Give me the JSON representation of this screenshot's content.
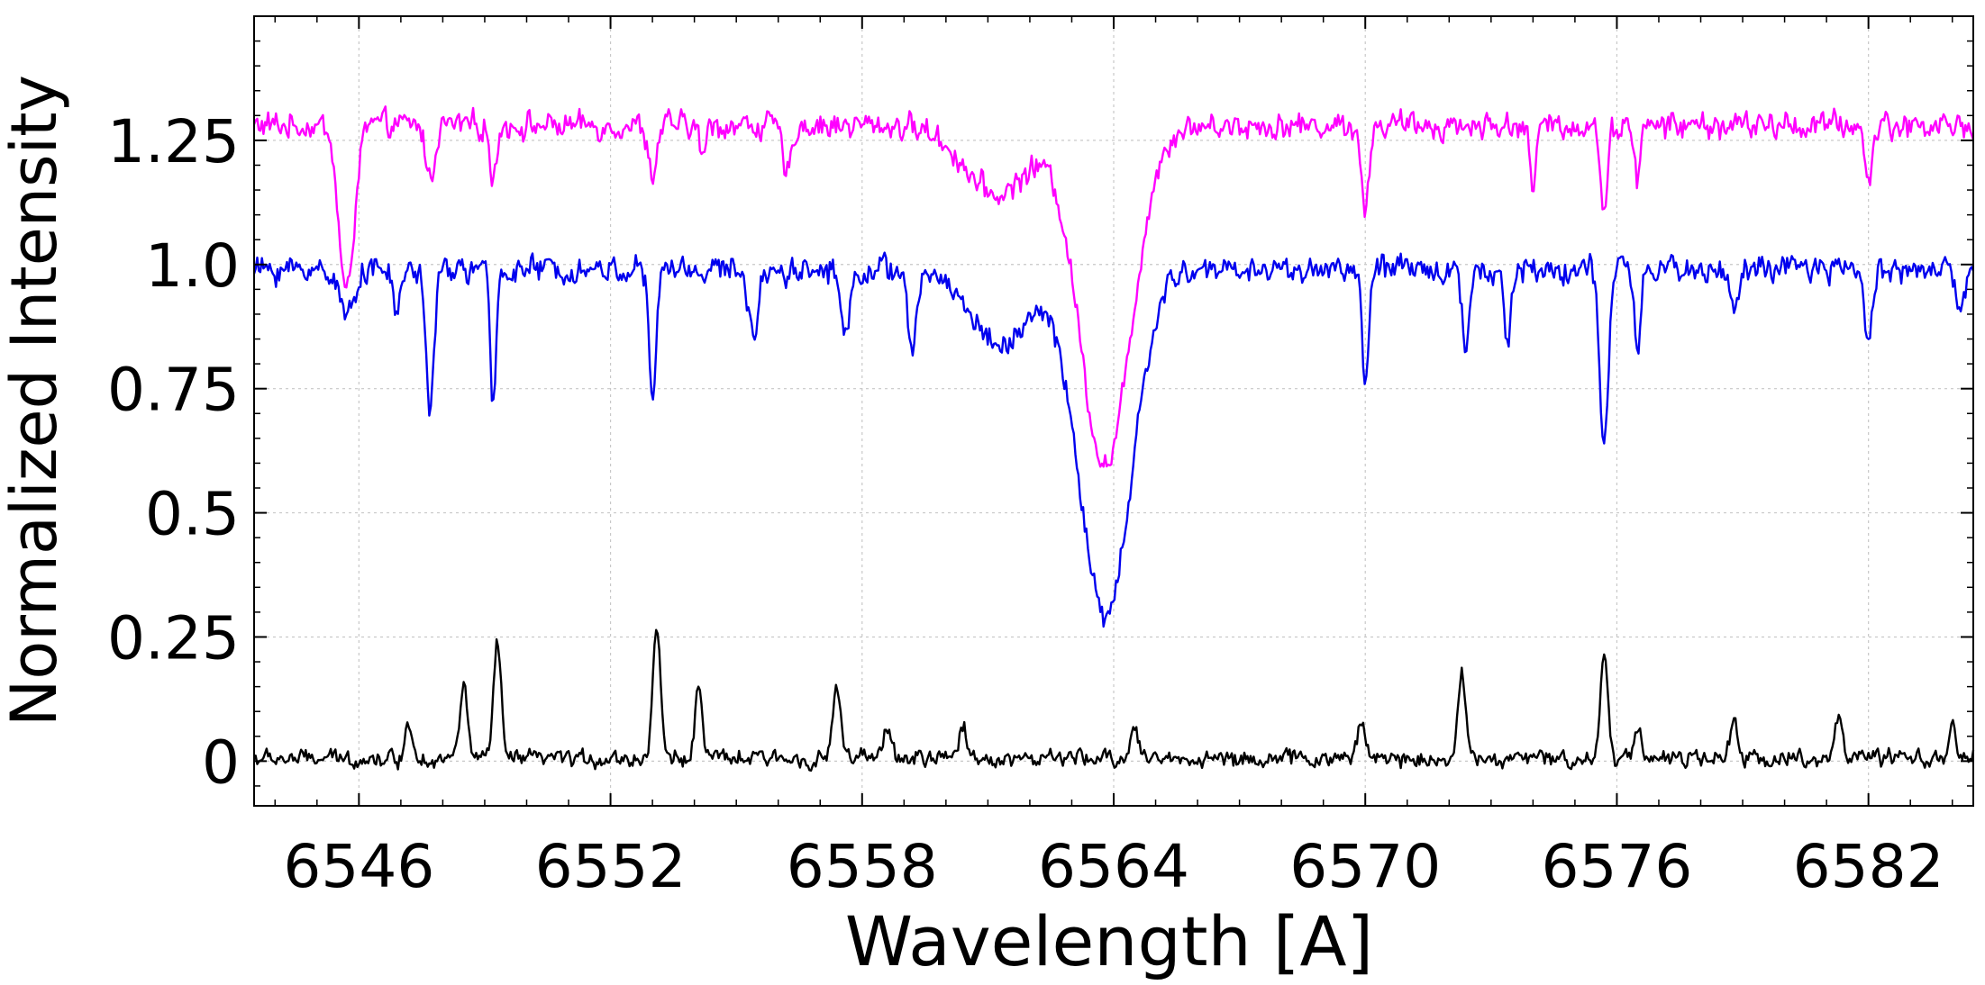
{
  "chart_data": {
    "type": "line",
    "title": "",
    "xlabel": "Wavelength [A]",
    "ylabel": "Normalized Intensity",
    "xlim": [
      6543.5,
      6584.5
    ],
    "ylim": [
      -0.09,
      1.5
    ],
    "grid": true,
    "x_ticks": [
      6546,
      6552,
      6558,
      6564,
      6570,
      6576,
      6582
    ],
    "x_tick_labels": [
      "6546",
      "6552",
      "6558",
      "6564",
      "6570",
      "6576",
      "6582"
    ],
    "y_ticks": [
      0,
      0.25,
      0.5,
      0.75,
      1.0,
      1.25
    ],
    "y_tick_labels": [
      "0",
      "0.25",
      "0.5",
      "0.75",
      "1.0",
      "1.25"
    ],
    "colors": {
      "series_top": "#ff00ff",
      "series_middle": "#0000ee",
      "series_bottom": "#000000",
      "grid": "#c8c8c8",
      "frame": "#000000"
    },
    "series": [
      {
        "color": "#ff00ff",
        "baseline": 1.28,
        "noise": 0.035,
        "lines": [
          [
            6545.7,
            0.34,
            0.18
          ],
          [
            6547.7,
            0.11,
            0.1
          ],
          [
            6549.2,
            0.12,
            0.07
          ],
          [
            6553.0,
            0.1,
            0.1
          ],
          [
            6554.2,
            0.06,
            0.08
          ],
          [
            6556.2,
            0.1,
            0.1
          ],
          [
            6561.2,
            0.14,
            0.75
          ],
          [
            6563.8,
            0.68,
            0.62
          ],
          [
            6570.0,
            0.19,
            0.08
          ],
          [
            6574.0,
            0.12,
            0.08
          ],
          [
            6575.7,
            0.18,
            0.08
          ],
          [
            6576.5,
            0.12,
            0.06
          ],
          [
            6582.0,
            0.12,
            0.08
          ]
        ]
      },
      {
        "color": "#0000ee",
        "baseline": 0.99,
        "noise": 0.035,
        "lines": [
          [
            6545.7,
            0.1,
            0.15
          ],
          [
            6546.9,
            0.08,
            0.1
          ],
          [
            6547.7,
            0.27,
            0.1
          ],
          [
            6549.2,
            0.28,
            0.07
          ],
          [
            6553.0,
            0.28,
            0.08
          ],
          [
            6555.4,
            0.15,
            0.1
          ],
          [
            6557.6,
            0.14,
            0.1
          ],
          [
            6559.2,
            0.18,
            0.1
          ],
          [
            6561.3,
            0.15,
            0.7
          ],
          [
            6563.8,
            0.7,
            0.62
          ],
          [
            6570.0,
            0.22,
            0.08
          ],
          [
            6572.4,
            0.17,
            0.08
          ],
          [
            6573.4,
            0.15,
            0.08
          ],
          [
            6575.7,
            0.36,
            0.1
          ],
          [
            6576.5,
            0.16,
            0.08
          ],
          [
            6578.8,
            0.08,
            0.1
          ],
          [
            6582.0,
            0.15,
            0.08
          ],
          [
            6584.2,
            0.08,
            0.1
          ]
        ]
      },
      {
        "color": "#000000",
        "baseline": 0.005,
        "noise": 0.022,
        "peaks": [
          [
            6547.2,
            0.07
          ],
          [
            6548.5,
            0.15
          ],
          [
            6549.3,
            0.23
          ],
          [
            6553.1,
            0.27
          ],
          [
            6554.1,
            0.14
          ],
          [
            6557.4,
            0.15
          ],
          [
            6558.6,
            0.07
          ],
          [
            6560.4,
            0.07
          ],
          [
            6564.5,
            0.07
          ],
          [
            6569.9,
            0.08
          ],
          [
            6572.3,
            0.17
          ],
          [
            6575.7,
            0.21
          ],
          [
            6576.5,
            0.07
          ],
          [
            6578.8,
            0.07
          ],
          [
            6581.3,
            0.09
          ],
          [
            6584.0,
            0.06
          ]
        ]
      }
    ]
  }
}
